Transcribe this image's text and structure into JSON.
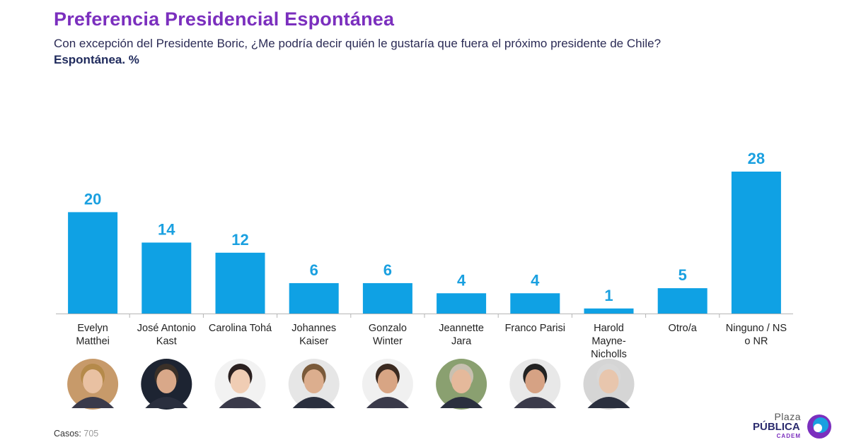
{
  "header": {
    "title": "Preferencia Presidencial Espontánea",
    "subtitle": "Con excepción del Presidente Boric, ¿Me podría decir quién le gustaría que fuera el próximo presidente de Chile?",
    "subtitle2": "Espontánea. %"
  },
  "footer": {
    "casos_label": "Casos:",
    "casos_value": "705"
  },
  "logo": {
    "line1": "Plaza",
    "line2": "PÚBLICA",
    "line3": "CADEM"
  },
  "colors": {
    "bar": "#0fa1e4",
    "title": "#7b2fbe",
    "label": "#1aa0e0"
  },
  "chart_data": {
    "type": "bar",
    "title": "Preferencia Presidencial Espontánea",
    "xlabel": "",
    "ylabel": "",
    "ylim": [
      0,
      28
    ],
    "grid": false,
    "categories": [
      [
        "Evelyn",
        "Matthei"
      ],
      [
        "José Antonio",
        "Kast"
      ],
      [
        "Carolina Tohá"
      ],
      [
        "Johannes",
        "Kaiser"
      ],
      [
        "Gonzalo",
        "Winter"
      ],
      [
        "Jeannette",
        "Jara"
      ],
      [
        "Franco Parisi"
      ],
      [
        "Harold",
        "Mayne-",
        "Nicholls"
      ],
      [
        "Otro/a"
      ],
      [
        "Ninguno / NS",
        "o NR"
      ]
    ],
    "values": [
      20,
      14,
      12,
      6,
      6,
      4,
      4,
      1,
      5,
      28
    ],
    "photo_skin": [
      "#e9c1a2",
      "#d9a889",
      "#f0cdb4",
      "#dcae8e",
      "#d8a584",
      "#e5b99b",
      "#d6a284",
      "#e8c6ad"
    ],
    "photo_hair": [
      "#b58a4a",
      "#3a3028",
      "#2a2020",
      "#7a5a3a",
      "#3b2a20",
      "#c8c0b0",
      "#222222",
      "#d8d8d8"
    ],
    "photo_bg": [
      "#c79a6a",
      "#1d2432",
      "#f2f2f2",
      "#e6e6e6",
      "#f0f0f0",
      "#8aa070",
      "#e8e8e8",
      "#d5d5d5"
    ]
  }
}
